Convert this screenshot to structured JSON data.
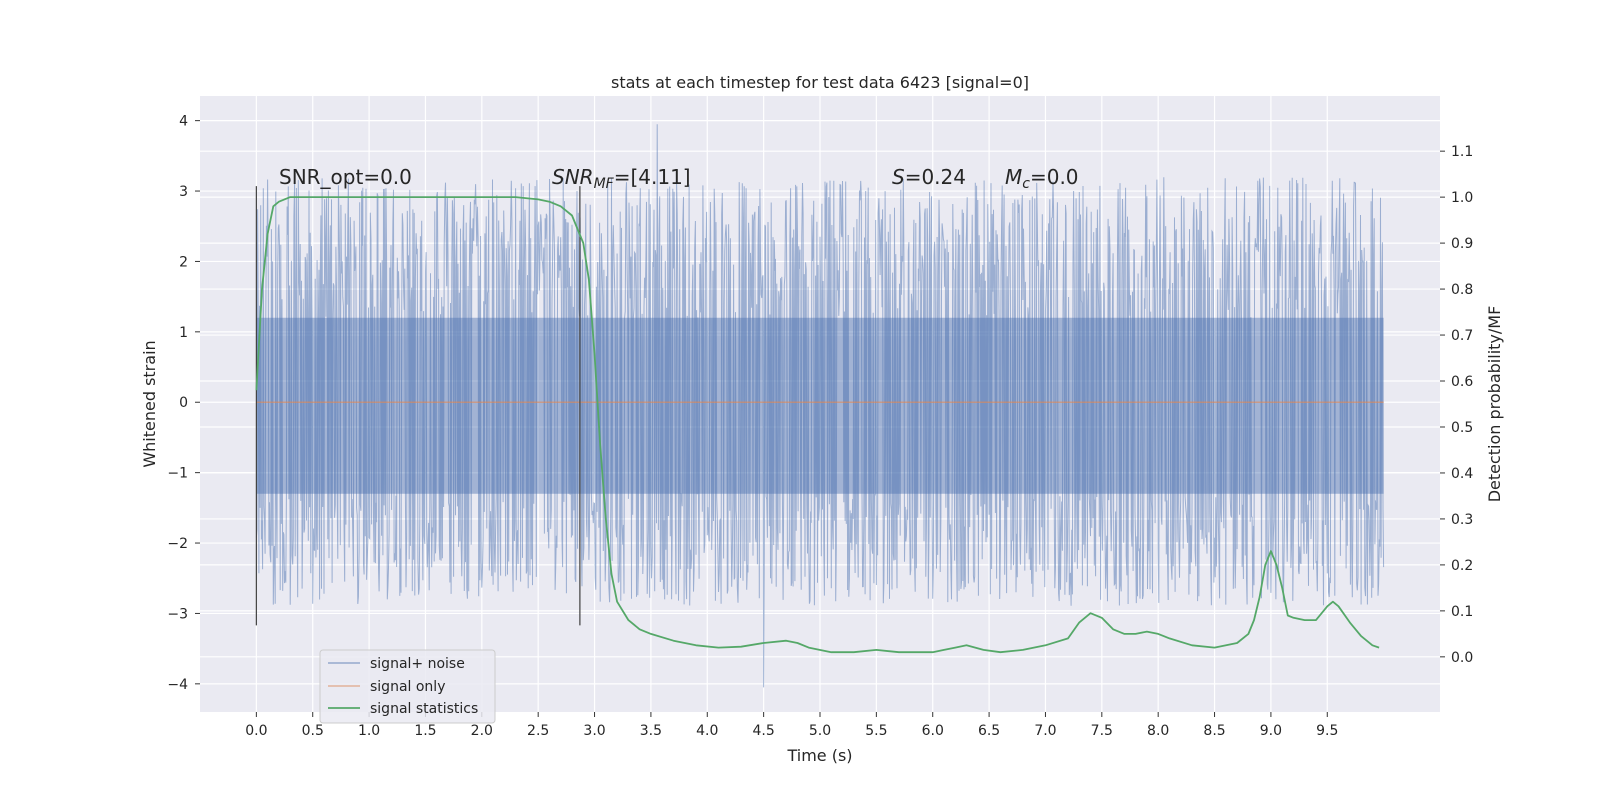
{
  "chart_data": {
    "type": "line",
    "title": "stats at each timestep for test data 6423 [signal=0]",
    "xlabel": "Time (s)",
    "ylabel": "Whitened strain",
    "y2label": "Detection probability/MF",
    "xlim": [
      -0.5,
      10.5
    ],
    "ylim": [
      -4.4,
      4.35
    ],
    "y2lim": [
      -0.12,
      1.22
    ],
    "x_ticks": [
      "0.0",
      "0.5",
      "1.0",
      "1.5",
      "2.0",
      "2.5",
      "3.0",
      "3.5",
      "4.0",
      "4.5",
      "5.0",
      "5.5",
      "6.0",
      "6.5",
      "7.0",
      "7.5",
      "8.0",
      "8.5",
      "9.0",
      "9.5"
    ],
    "y_ticks": [
      "4",
      "3",
      "2",
      "1",
      "0",
      "−1",
      "−2",
      "−3",
      "−4"
    ],
    "y2_ticks": [
      "1.1",
      "1.0",
      "0.9",
      "0.8",
      "0.7",
      "0.6",
      "0.5",
      "0.4",
      "0.3",
      "0.2",
      "0.1",
      "0.0"
    ],
    "grid": true,
    "legend_position": "lower-left",
    "annotations": {
      "snr_opt": "SNR_opt=0.0",
      "snr_mf_main": "SNR",
      "snr_mf_sub": "MF",
      "snr_mf_value": "=[4.11]",
      "s_main": "S",
      "s_value": "=0.24",
      "mc_main": "M",
      "mc_sub": "c",
      "mc_value": "=0.0"
    },
    "vertical_markers": [
      0.0,
      2.87
    ],
    "series": [
      {
        "name": "signal+ noise",
        "color": "#4c72b0",
        "axis": "left",
        "style": "dense noisy strain, roughly uniform amplitude",
        "x_range": [
          0.0,
          10.0
        ],
        "core_range": [
          -1.3,
          1.2
        ],
        "envelope": [
          -2.9,
          3.2
        ],
        "extremes": {
          "max": 3.95,
          "min": -4.05
        }
      },
      {
        "name": "signal only",
        "color": "#dd8452",
        "axis": "left",
        "x": [
          0.0,
          10.0
        ],
        "y": [
          0.0,
          0.0
        ]
      },
      {
        "name": "signal statistics",
        "color": "#55a868",
        "axis": "right",
        "x": [
          0.0,
          0.05,
          0.1,
          0.15,
          0.2,
          0.3,
          0.5,
          1.0,
          1.5,
          2.0,
          2.3,
          2.5,
          2.6,
          2.7,
          2.8,
          2.9,
          2.95,
          3.0,
          3.05,
          3.1,
          3.15,
          3.2,
          3.3,
          3.4,
          3.5,
          3.7,
          3.9,
          4.1,
          4.3,
          4.5,
          4.7,
          4.8,
          4.9,
          5.1,
          5.3,
          5.5,
          5.7,
          6.0,
          6.1,
          6.2,
          6.3,
          6.45,
          6.6,
          6.8,
          7.0,
          7.2,
          7.3,
          7.4,
          7.5,
          7.6,
          7.7,
          7.8,
          7.9,
          8.0,
          8.1,
          8.3,
          8.5,
          8.7,
          8.8,
          8.85,
          8.9,
          8.95,
          9.0,
          9.05,
          9.1,
          9.15,
          9.2,
          9.3,
          9.4,
          9.5,
          9.55,
          9.6,
          9.7,
          9.8,
          9.9,
          9.96
        ],
        "y": [
          0.58,
          0.8,
          0.92,
          0.98,
          0.99,
          1.0,
          1.0,
          1.0,
          1.0,
          1.0,
          1.0,
          0.995,
          0.99,
          0.98,
          0.96,
          0.9,
          0.82,
          0.66,
          0.46,
          0.3,
          0.18,
          0.12,
          0.08,
          0.06,
          0.05,
          0.035,
          0.025,
          0.02,
          0.022,
          0.03,
          0.035,
          0.03,
          0.02,
          0.01,
          0.01,
          0.015,
          0.01,
          0.01,
          0.015,
          0.02,
          0.025,
          0.015,
          0.01,
          0.015,
          0.025,
          0.04,
          0.075,
          0.095,
          0.085,
          0.06,
          0.05,
          0.05,
          0.055,
          0.05,
          0.04,
          0.025,
          0.02,
          0.03,
          0.05,
          0.08,
          0.13,
          0.2,
          0.23,
          0.2,
          0.15,
          0.09,
          0.085,
          0.08,
          0.08,
          0.11,
          0.12,
          0.11,
          0.075,
          0.045,
          0.025,
          0.02
        ]
      }
    ]
  }
}
